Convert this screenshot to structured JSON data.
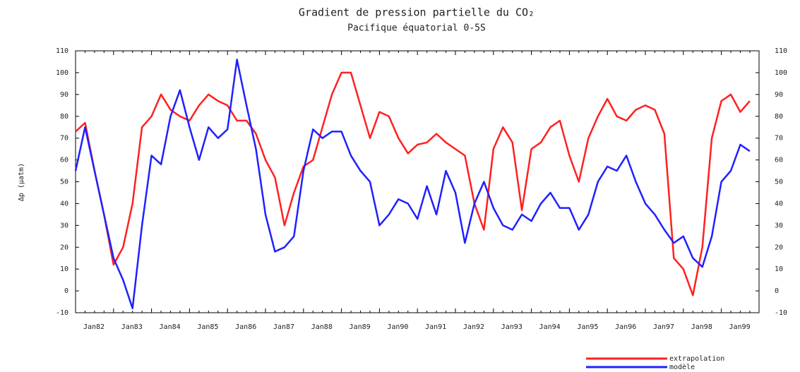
{
  "chart_data": {
    "type": "line",
    "title": "Gradient de pression partielle du CO₂",
    "subtitle": "Pacifique équatorial 0-5S",
    "y_label": "Δp (µatm)",
    "categories": [
      "Jan82",
      null,
      null,
      null,
      "Jan83",
      null,
      null,
      null,
      "Jan84",
      null,
      null,
      null,
      "Jan85",
      null,
      null,
      null,
      "Jan86",
      null,
      null,
      null,
      "Jan87",
      null,
      null,
      null,
      "Jan88",
      null,
      null,
      null,
      "Jan89",
      null,
      null,
      null,
      "Jan90",
      null,
      null,
      null,
      "Jan91",
      null,
      null,
      null,
      "Jan92",
      null,
      null,
      null,
      "Jan93",
      null,
      null,
      null,
      "Jan94",
      null,
      null,
      null,
      "Jan95",
      null,
      null,
      null,
      "Jan96",
      null,
      null,
      null,
      "Jan97",
      null,
      null,
      null,
      "Jan98",
      null,
      null,
      null,
      "Jan99",
      null,
      null,
      null
    ],
    "series": [
      {
        "name": "extrapolation",
        "color": "#ff2020",
        "values": [
          73,
          77,
          55,
          35,
          12,
          20,
          40,
          75,
          80,
          90,
          83,
          80,
          78,
          85,
          90,
          87,
          85,
          78,
          78,
          72,
          60,
          52,
          30,
          45,
          57,
          60,
          75,
          90,
          100,
          100,
          85,
          70,
          82,
          80,
          70,
          63,
          67,
          68,
          72,
          68,
          65,
          62,
          40,
          28,
          65,
          75,
          68,
          37,
          65,
          68,
          75,
          78,
          62,
          50,
          70,
          80,
          88,
          80,
          78,
          83,
          85,
          83,
          72,
          15,
          10,
          -2,
          20,
          70,
          87,
          90,
          82,
          87
        ]
      },
      {
        "name": "modèle",
        "color": "#2020ff",
        "values": [
          55,
          75,
          55,
          35,
          15,
          5,
          -8,
          30,
          62,
          58,
          80,
          92,
          75,
          60,
          75,
          70,
          74,
          106,
          85,
          65,
          35,
          18,
          20,
          25,
          55,
          74,
          70,
          73,
          73,
          62,
          55,
          50,
          30,
          35,
          42,
          40,
          33,
          48,
          35,
          55,
          45,
          22,
          40,
          50,
          38,
          30,
          28,
          35,
          32,
          40,
          45,
          38,
          38,
          28,
          35,
          50,
          57,
          55,
          62,
          50,
          40,
          35,
          28,
          22,
          25,
          15,
          11,
          25,
          50,
          55,
          67,
          64
        ]
      }
    ],
    "ylim": [
      -10,
      110
    ],
    "yticks": [
      -10,
      0,
      10,
      20,
      30,
      40,
      50,
      60,
      70,
      80,
      90,
      100,
      110
    ],
    "y2lim": [
      -10,
      110
    ],
    "y2ticks": [
      -10,
      0,
      10,
      20,
      30,
      40,
      50,
      60,
      70,
      80,
      90,
      100,
      110
    ],
    "legend": "bottom-right"
  }
}
